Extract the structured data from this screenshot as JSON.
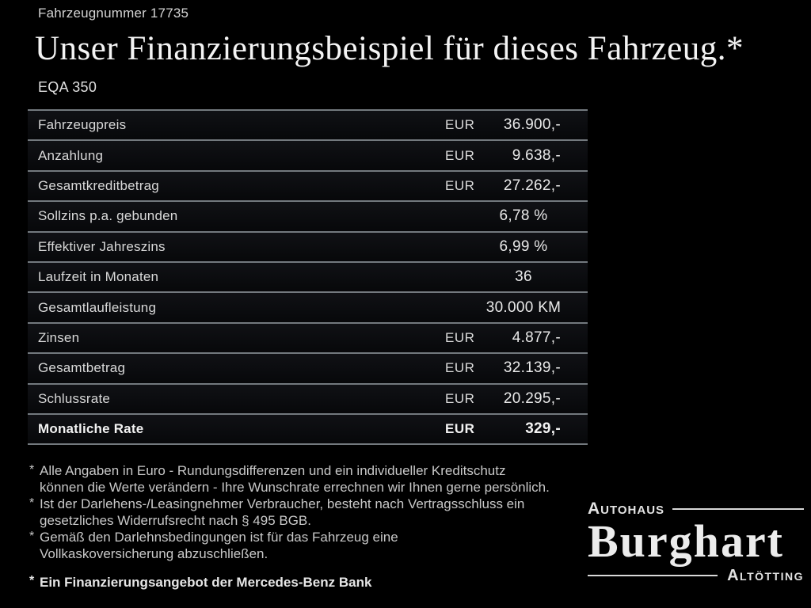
{
  "page": {
    "vehicle_number": "Fahrzeugnummer 17735",
    "title": "Unser Finanzierungsbeispiel für dieses Fahrzeug.",
    "title_mark": "*",
    "model": "EQA 350"
  },
  "table": {
    "rows": [
      {
        "label": "Fahrzeugpreis",
        "currency": "EUR",
        "value": "36.900,-"
      },
      {
        "label": "Anzahlung",
        "currency": "EUR",
        "value": "9.638,-"
      },
      {
        "label": "Gesamtkreditbetrag",
        "currency": "EUR",
        "value": "27.262,-"
      },
      {
        "label": "Sollzins p.a. gebunden",
        "currency": "",
        "value": "6,78 %"
      },
      {
        "label": "Effektiver Jahreszins",
        "currency": "",
        "value": "6,99 %"
      },
      {
        "label": "Laufzeit in Monaten",
        "currency": "",
        "value": "36"
      },
      {
        "label": "Gesamtlaufleistung",
        "currency": "",
        "value": "30.000 KM"
      },
      {
        "label": "Zinsen",
        "currency": "EUR",
        "value": "4.877,-"
      },
      {
        "label": "Gesamtbetrag",
        "currency": "EUR",
        "value": "32.139,-"
      },
      {
        "label": "Schlussrate",
        "currency": "EUR",
        "value": "20.295,-"
      },
      {
        "label": "Monatliche Rate",
        "currency": "EUR",
        "value": "329,-",
        "emphasis": true
      }
    ]
  },
  "footnotes": {
    "marker": "*",
    "items": [
      {
        "lines": [
          "Alle Angaben in Euro - Rundungsdifferenzen und ein individueller Kreditschutz",
          "können die Werte verändern - Ihre Wunschrate errechnen wir Ihnen gerne persönlich."
        ]
      },
      {
        "lines": [
          "Ist der Darlehens-/Leasingnehmer Verbraucher, besteht nach Vertragsschluss ein",
          "gesetzliches Widerrufsrecht nach § 495 BGB."
        ]
      },
      {
        "lines": [
          "Gemäß den Darlehnsbedingungen ist für das Fahrzeug eine",
          "Vollkaskoversicherung abzuschließen."
        ]
      }
    ],
    "financing_note": "Ein Finanzierungsangebot der Mercedes-Benz Bank"
  },
  "dealer_logo": {
    "top_label": "Autohaus",
    "name": "Burghart",
    "bottom_label": "Altötting"
  },
  "colors": {
    "background": "#000000",
    "separator_line": "#73797e",
    "row_background": "#0b0c0f",
    "text_primary": "#eaeaea",
    "text_secondary": "#c8c8c8"
  }
}
